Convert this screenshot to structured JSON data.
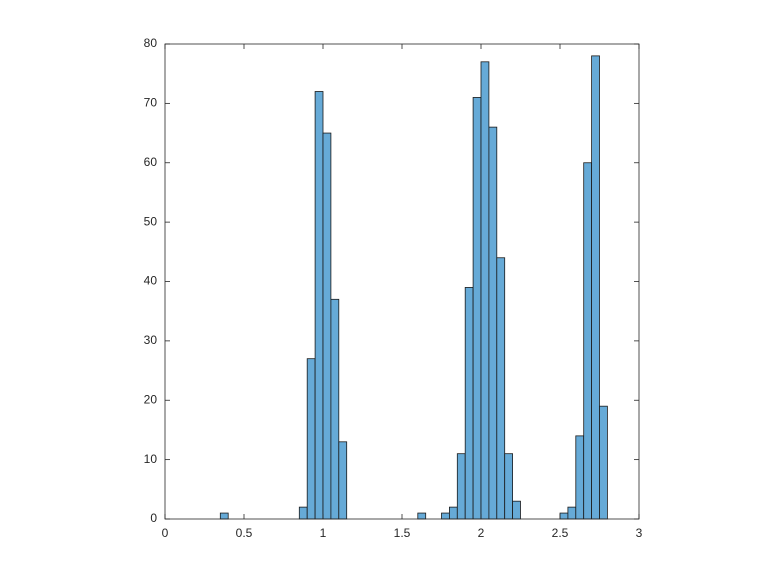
{
  "chart_data": {
    "type": "histogram",
    "bins": [
      0.35,
      0.4,
      0.45,
      0.5,
      0.55,
      0.6,
      0.65,
      0.7,
      0.75,
      0.8,
      0.85,
      0.9,
      0.95,
      1.0,
      1.05,
      1.1,
      1.15,
      1.2,
      1.25,
      1.3,
      1.35,
      1.4,
      1.45,
      1.5,
      1.55,
      1.6,
      1.65,
      1.7,
      1.75,
      1.8,
      1.85,
      1.9,
      1.95,
      2.0,
      2.05,
      2.1,
      2.15,
      2.2,
      2.25,
      2.3,
      2.35,
      2.4,
      2.45,
      2.5,
      2.55,
      2.6,
      2.65,
      2.7,
      2.75,
      2.8
    ],
    "values": [
      1,
      0,
      0,
      0,
      0,
      0,
      0,
      0,
      0,
      0,
      2,
      27,
      72,
      65,
      37,
      13,
      0,
      0,
      0,
      0,
      0,
      0,
      0,
      0,
      0,
      1,
      0,
      0,
      1,
      2,
      11,
      39,
      71,
      77,
      66,
      44,
      11,
      3,
      0,
      0,
      0,
      0,
      0,
      1,
      2,
      14,
      60,
      78,
      19
    ],
    "color": "#66aad7",
    "xlim": [
      0,
      3
    ],
    "xticks": [
      0,
      0.5,
      1,
      1.5,
      2,
      2.5,
      3
    ],
    "ylim": [
      0,
      80
    ],
    "yticks": [
      0,
      10,
      20,
      30,
      40,
      50,
      60,
      70,
      80
    ]
  }
}
